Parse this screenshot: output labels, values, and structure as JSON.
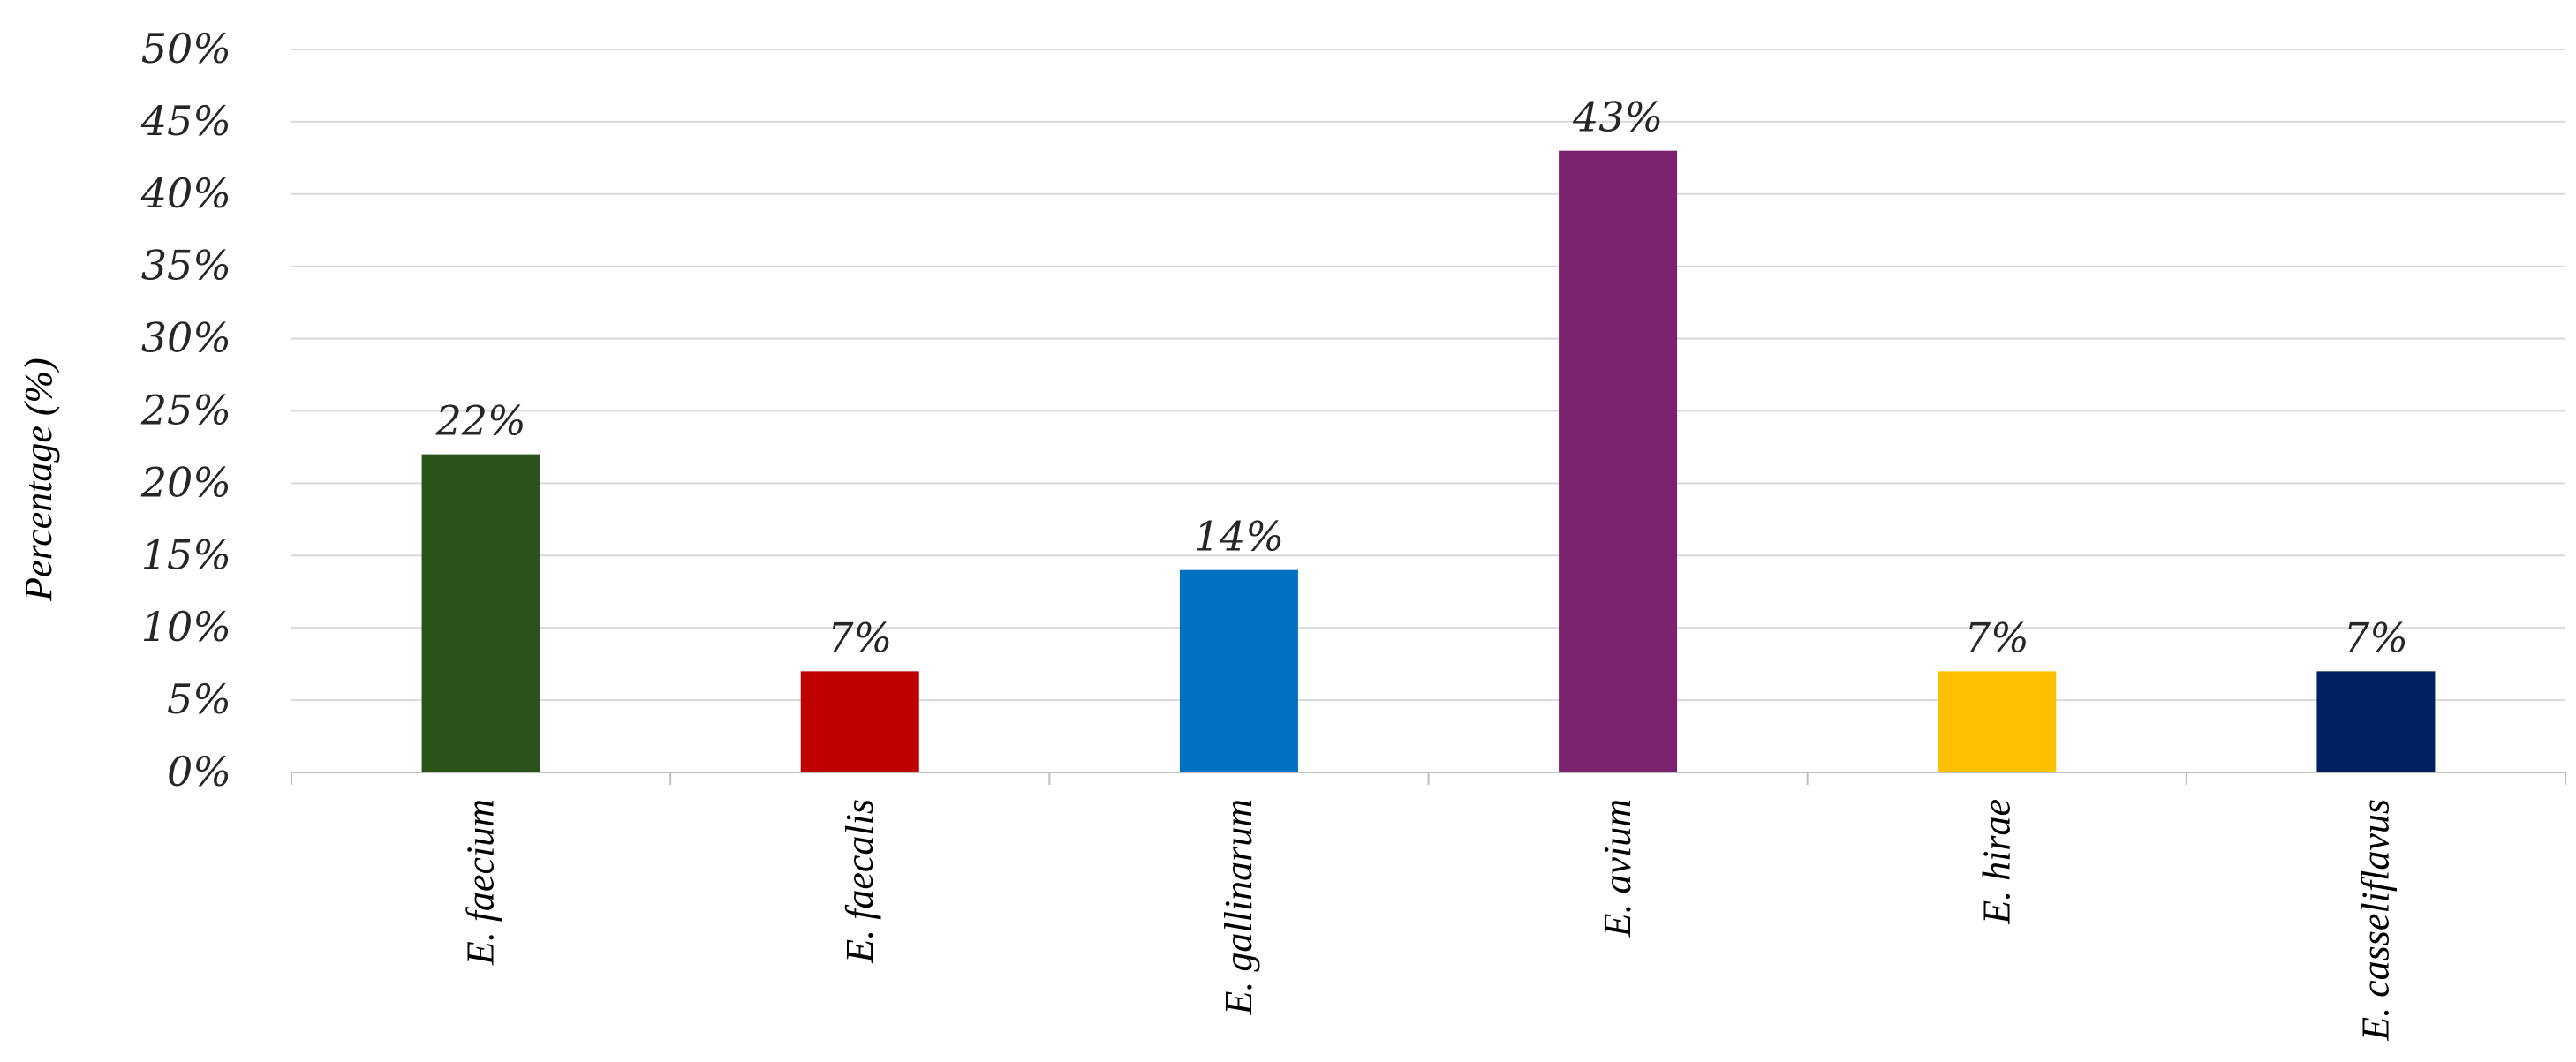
{
  "chart_data": {
    "type": "bar",
    "title": "",
    "xlabel": "",
    "ylabel": "Percentage (%)",
    "ylim": [
      0,
      50
    ],
    "yticks": [
      0,
      5,
      10,
      15,
      20,
      25,
      30,
      35,
      40,
      45,
      50
    ],
    "ytick_suffix": "%",
    "grid": true,
    "legend": "none",
    "categories": [
      "E. faecium",
      "E. faecalis",
      "E. gallinarum",
      "E. avium",
      "E. hirae",
      "E. casseliflavus"
    ],
    "values": [
      22,
      7,
      14,
      43,
      7,
      7
    ],
    "data_labels": [
      "22%",
      "7%",
      "14%",
      "43%",
      "7%",
      "7%"
    ],
    "bar_colors": [
      "#2a5219",
      "#c00000",
      "#0070c0",
      "#7a226e",
      "#ffc000",
      "#002060"
    ]
  },
  "colors": {
    "gridline": "#d9d9d9",
    "axis": "#bfbfbf"
  }
}
